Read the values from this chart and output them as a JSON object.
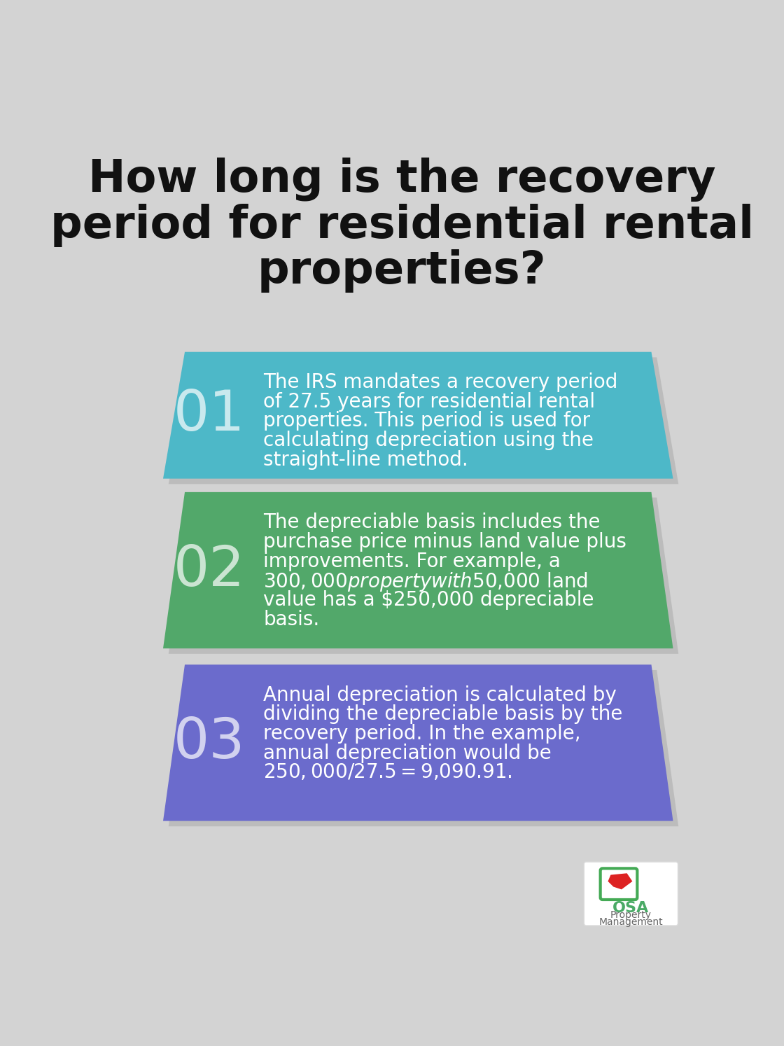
{
  "title_line1": "How long is the recovery",
  "title_line2": "period for residential rental",
  "title_line3": "properties?",
  "background_color": "#d3d3d3",
  "title_color": "#111111",
  "title_fontsize": 46,
  "cards": [
    {
      "number": "01",
      "color": "#4db8c8",
      "text_lines": [
        "The IRS mandates a recovery period",
        "of 27.5 years for residential rental",
        "properties. This period is used for",
        "calculating depreciation using the",
        "straight-line method."
      ]
    },
    {
      "number": "02",
      "color": "#52a86a",
      "text_lines": [
        "The depreciable basis includes the",
        "purchase price minus land value plus",
        "improvements. For example, a",
        "$300,000 property with $50,000 land",
        "value has a $250,000 depreciable",
        "basis."
      ]
    },
    {
      "number": "03",
      "color": "#6b6bcc",
      "text_lines": [
        "Annual depreciation is calculated by",
        "dividing the depreciable basis by the",
        "recovery period. In the example,",
        "annual depreciation would be",
        "$250,000 / 27.5 = $9,090.91."
      ]
    }
  ],
  "text_color": "#ffffff",
  "number_fontsize": 58,
  "body_fontsize": 20,
  "logo_box_color": "#ffffff",
  "logo_text_color": "#555555",
  "logo_osa_color": "#4aaa66"
}
